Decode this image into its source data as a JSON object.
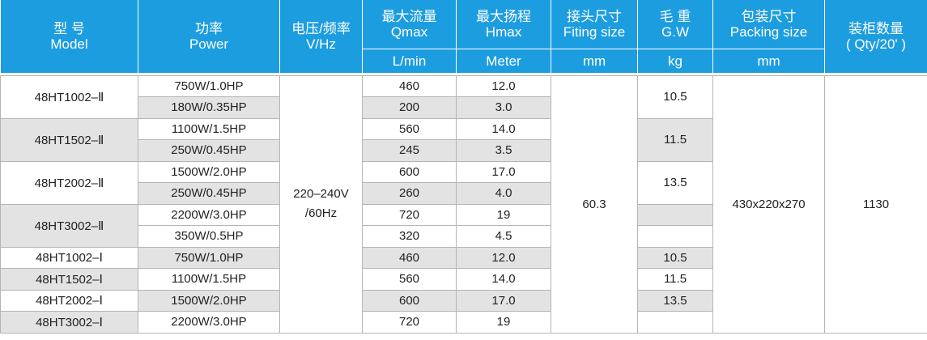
{
  "header": {
    "model": {
      "zh": "型 号",
      "en": "Model"
    },
    "power": {
      "zh": "功率",
      "en": "Power"
    },
    "voltage": {
      "zh": "电压/频率",
      "en": "V/Hz"
    },
    "qmax": {
      "zh": "最大流量",
      "en": "Qmax",
      "unit": "L/min"
    },
    "hmax": {
      "zh": "最大扬程",
      "en": "Hmax",
      "unit": "Meter"
    },
    "fitting": {
      "zh": "接头尺寸",
      "en": "Fiting size",
      "unit": "mm"
    },
    "gw": {
      "zh": "毛 重",
      "en": "G.W",
      "unit": "kg"
    },
    "packing": {
      "zh": "包装尺寸",
      "en": "Packing size",
      "unit": "mm"
    },
    "qty": {
      "zh": "装柜数量",
      "en": "( Qty/20' )"
    }
  },
  "groups": [
    {
      "model": "48HT1002–Ⅱ",
      "rows": [
        {
          "power": "750W/1.0HP",
          "qmax": "460",
          "hmax": "12.0"
        },
        {
          "power": "180W/0.35HP",
          "qmax": "200",
          "hmax": "3.0"
        }
      ]
    },
    {
      "model": "48HT1502–Ⅱ",
      "rows": [
        {
          "power": "1100W/1.5HP",
          "qmax": "560",
          "hmax": "14.0"
        },
        {
          "power": "250W/0.45HP",
          "qmax": "245",
          "hmax": "3.5"
        }
      ]
    },
    {
      "model": "48HT2002–Ⅱ",
      "rows": [
        {
          "power": "1500W/2.0HP",
          "qmax": "600",
          "hmax": "17.0"
        },
        {
          "power": "250W/0.45HP",
          "qmax": "260",
          "hmax": "4.0"
        }
      ]
    },
    {
      "model": "48HT3002–Ⅱ",
      "rows": [
        {
          "power": "2200W/3.0HP",
          "qmax": "720",
          "hmax": "19"
        },
        {
          "power": "350W/0.5HP",
          "qmax": "320",
          "hmax": "4.5"
        }
      ]
    },
    {
      "model": "48HT1002–Ⅰ",
      "rows": [
        {
          "power": "750W/1.0HP",
          "qmax": "460",
          "hmax": "12.0"
        }
      ]
    },
    {
      "model": "48HT1502–Ⅰ",
      "rows": [
        {
          "power": "1100W/1.5HP",
          "qmax": "560",
          "hmax": "14.0"
        }
      ]
    },
    {
      "model": "48HT2002–Ⅰ",
      "rows": [
        {
          "power": "1500W/2.0HP",
          "qmax": "600",
          "hmax": "17.0"
        }
      ]
    },
    {
      "model": "48HT3002–Ⅰ",
      "rows": [
        {
          "power": "2200W/3.0HP",
          "qmax": "720",
          "hmax": "19"
        }
      ]
    }
  ],
  "gross_weight": [
    "10.5",
    "11.5",
    "13.5",
    "10.5",
    "11.5",
    "13.5"
  ],
  "voltage": [
    "220–240V",
    "/60Hz"
  ],
  "fitting": "60.3",
  "packing": "430x220x270",
  "qty": "1130"
}
